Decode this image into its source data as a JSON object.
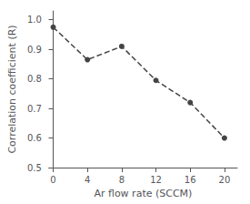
{
  "chart_data": {
    "type": "line",
    "x": [
      0,
      4,
      8,
      12,
      16,
      20
    ],
    "values": [
      0.975,
      0.865,
      0.91,
      0.795,
      0.72,
      0.6
    ],
    "xlabel": "Ar flow rate (SCCM)",
    "ylabel": "Correlation coefficient (R)",
    "xlim": [
      -0.5,
      21.5
    ],
    "ylim": [
      0.5,
      1.03
    ],
    "xticks": [
      0,
      4,
      8,
      12,
      16,
      20
    ],
    "yticks": [
      0.5,
      0.6,
      0.7,
      0.8,
      0.9,
      {
        "value": 1.0,
        "label": "1.0"
      }
    ],
    "color": "#444444",
    "marker": "circle",
    "line_style": "dashed",
    "grid": false
  }
}
